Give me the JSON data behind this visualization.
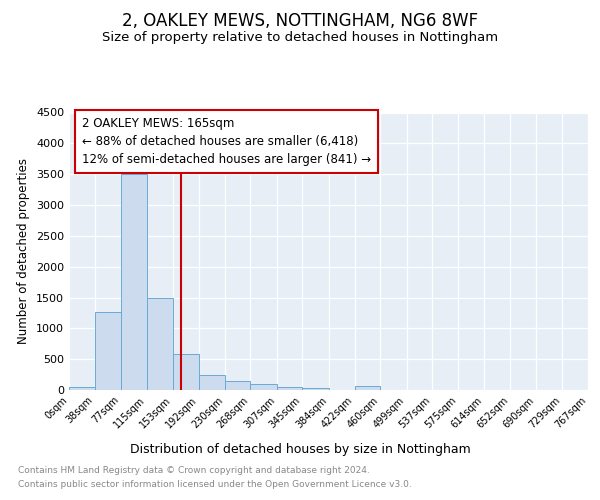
{
  "title": "2, OAKLEY MEWS, NOTTINGHAM, NG6 8WF",
  "subtitle": "Size of property relative to detached houses in Nottingham",
  "xlabel": "Distribution of detached houses by size in Nottingham",
  "ylabel": "Number of detached properties",
  "annotation_title": "2 OAKLEY MEWS: 165sqm",
  "annotation_line1": "← 88% of detached houses are smaller (6,418)",
  "annotation_line2": "12% of semi-detached houses are larger (841) →",
  "bin_edges": [
    0,
    38,
    77,
    115,
    153,
    192,
    230,
    268,
    307,
    345,
    384,
    422,
    460,
    499,
    537,
    575,
    614,
    652,
    690,
    729,
    767
  ],
  "bar_heights": [
    50,
    1270,
    3500,
    1490,
    580,
    245,
    140,
    90,
    50,
    30,
    0,
    60,
    0,
    0,
    0,
    0,
    0,
    0,
    0,
    0
  ],
  "bar_color": "#ccdcee",
  "bar_edge_color": "#6aaad4",
  "vline_color": "#cc0000",
  "vline_x": 165,
  "annotation_box_edgecolor": "#cc0000",
  "ylim": [
    0,
    4500
  ],
  "yticks": [
    0,
    500,
    1000,
    1500,
    2000,
    2500,
    3000,
    3500,
    4000,
    4500
  ],
  "plot_bg_color": "#e8eef6",
  "footer_line1": "Contains HM Land Registry data © Crown copyright and database right 2024.",
  "footer_line2": "Contains public sector information licensed under the Open Government Licence v3.0.",
  "title_fontsize": 12,
  "subtitle_fontsize": 9.5,
  "xlabel_fontsize": 9,
  "ylabel_fontsize": 8.5,
  "tick_fontsize": 7,
  "annotation_fontsize": 8.5,
  "footer_fontsize": 6.5
}
